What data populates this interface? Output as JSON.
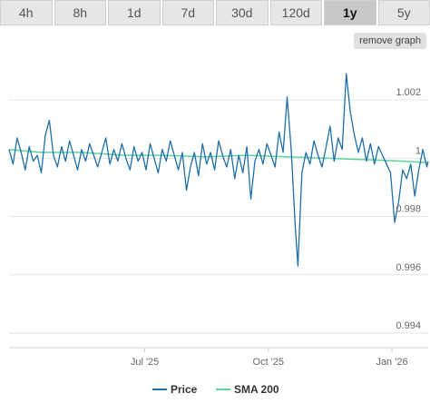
{
  "tabs": [
    {
      "label": "4h",
      "active": false
    },
    {
      "label": "8h",
      "active": false
    },
    {
      "label": "1d",
      "active": false
    },
    {
      "label": "7d",
      "active": false
    },
    {
      "label": "30d",
      "active": false
    },
    {
      "label": "120d",
      "active": false
    },
    {
      "label": "1y",
      "active": true
    },
    {
      "label": "5y",
      "active": false
    }
  ],
  "remove_graph_label": "remove graph",
  "colors": {
    "price": "#1f6fa8",
    "sma": "#5dd39e",
    "grid": "#e6e6e6"
  },
  "chart_data": {
    "type": "line",
    "title": "",
    "xlabel": "",
    "ylabel": "",
    "ylim": [
      0.9935,
      1.0035
    ],
    "xlim": [
      "2025-03-22",
      "2026-01-28"
    ],
    "x_ticks": [
      {
        "date": "2025-07-01",
        "label": "Jul '25"
      },
      {
        "date": "2025-10-01",
        "label": "Oct '25"
      },
      {
        "date": "2026-01-01",
        "label": "Jan '26"
      }
    ],
    "y_ticks": [
      {
        "value": 1.002,
        "label": "1.002"
      },
      {
        "value": 1.0,
        "label": "1"
      },
      {
        "value": 0.998,
        "label": "0.998"
      },
      {
        "value": 0.996,
        "label": "0.996"
      },
      {
        "value": 0.994,
        "label": "0.994"
      }
    ],
    "legend": {
      "position": "bottom",
      "items": [
        "Price",
        "SMA 200"
      ]
    },
    "series": [
      {
        "name": "Price",
        "points": [
          [
            "2025-03-22",
            1.0003
          ],
          [
            "2025-03-25",
            0.9998
          ],
          [
            "2025-03-28",
            1.0007
          ],
          [
            "2025-03-31",
            1.0002
          ],
          [
            "2025-04-03",
            0.9996
          ],
          [
            "2025-04-06",
            1.0004
          ],
          [
            "2025-04-09",
            0.9999
          ],
          [
            "2025-04-12",
            1.0001
          ],
          [
            "2025-04-15",
            0.9995
          ],
          [
            "2025-04-18",
            1.0008
          ],
          [
            "2025-04-21",
            1.0013
          ],
          [
            "2025-04-24",
            1.0001
          ],
          [
            "2025-04-27",
            0.9997
          ],
          [
            "2025-04-30",
            1.0004
          ],
          [
            "2025-05-03",
            0.9999
          ],
          [
            "2025-05-06",
            1.0006
          ],
          [
            "2025-05-09",
            1.0001
          ],
          [
            "2025-05-12",
            0.9996
          ],
          [
            "2025-05-15",
            1.0003
          ],
          [
            "2025-05-18",
            0.9999
          ],
          [
            "2025-05-21",
            1.0005
          ],
          [
            "2025-05-24",
            1.0001
          ],
          [
            "2025-05-27",
            0.9997
          ],
          [
            "2025-05-30",
            1.0002
          ],
          [
            "2025-06-02",
            1.0007
          ],
          [
            "2025-06-05",
            0.9998
          ],
          [
            "2025-06-08",
            1.0003
          ],
          [
            "2025-06-11",
            0.9999
          ],
          [
            "2025-06-14",
            1.0005
          ],
          [
            "2025-06-17",
            1.0
          ],
          [
            "2025-06-20",
            0.9996
          ],
          [
            "2025-06-23",
            1.0004
          ],
          [
            "2025-06-26",
            0.9999
          ],
          [
            "2025-06-29",
            1.0002
          ],
          [
            "2025-07-02",
            0.9996
          ],
          [
            "2025-07-05",
            1.0005
          ],
          [
            "2025-07-08",
            1.0
          ],
          [
            "2025-07-11",
            0.9995
          ],
          [
            "2025-07-14",
            1.0003
          ],
          [
            "2025-07-17",
            0.9999
          ],
          [
            "2025-07-20",
            1.0006
          ],
          [
            "2025-07-23",
            1.0001
          ],
          [
            "2025-07-26",
            0.9996
          ],
          [
            "2025-07-29",
            1.0002
          ],
          [
            "2025-08-01",
            0.9989
          ],
          [
            "2025-08-04",
            0.9997
          ],
          [
            "2025-08-07",
            1.0002
          ],
          [
            "2025-08-10",
            0.9994
          ],
          [
            "2025-08-13",
            1.0005
          ],
          [
            "2025-08-16",
            0.9998
          ],
          [
            "2025-08-19",
            1.0002
          ],
          [
            "2025-08-22",
            0.9996
          ],
          [
            "2025-08-25",
            1.0006
          ],
          [
            "2025-08-28",
            1.0001
          ],
          [
            "2025-08-31",
            0.9997
          ],
          [
            "2025-09-03",
            1.0003
          ],
          [
            "2025-09-06",
            0.9993
          ],
          [
            "2025-09-09",
            1.0001
          ],
          [
            "2025-09-12",
            0.9995
          ],
          [
            "2025-09-15",
            1.0004
          ],
          [
            "2025-09-18",
            0.9986
          ],
          [
            "2025-09-21",
            0.9999
          ],
          [
            "2025-09-24",
            1.0003
          ],
          [
            "2025-09-27",
            0.9998
          ],
          [
            "2025-09-30",
            1.0005
          ],
          [
            "2025-10-03",
            1.0001
          ],
          [
            "2025-10-06",
            0.9997
          ],
          [
            "2025-10-09",
            1.0009
          ],
          [
            "2025-10-12",
            1.0002
          ],
          [
            "2025-10-15",
            1.0021
          ],
          [
            "2025-10-18",
            1.0003
          ],
          [
            "2025-10-21",
            0.9977
          ],
          [
            "2025-10-23",
            0.9963
          ],
          [
            "2025-10-26",
            0.9995
          ],
          [
            "2025-10-29",
            1.0002
          ],
          [
            "2025-11-01",
            0.9998
          ],
          [
            "2025-11-04",
            1.0006
          ],
          [
            "2025-11-07",
            1.0001
          ],
          [
            "2025-11-10",
            0.9997
          ],
          [
            "2025-11-13",
            1.0004
          ],
          [
            "2025-11-16",
            1.0011
          ],
          [
            "2025-11-19",
            0.9999
          ],
          [
            "2025-11-22",
            1.0007
          ],
          [
            "2025-11-25",
            1.0003
          ],
          [
            "2025-11-28",
            1.0029
          ],
          [
            "2025-12-01",
            1.0016
          ],
          [
            "2025-12-04",
            1.0008
          ],
          [
            "2025-12-07",
            1.0002
          ],
          [
            "2025-12-10",
            1.0007
          ],
          [
            "2025-12-13",
            0.9999
          ],
          [
            "2025-12-16",
            1.0005
          ],
          [
            "2025-12-19",
            0.9998
          ],
          [
            "2025-12-22",
            1.0004
          ],
          [
            "2025-12-25",
            1.0001
          ],
          [
            "2025-12-28",
            0.9998
          ],
          [
            "2025-12-31",
            0.9995
          ],
          [
            "2026-01-03",
            0.9978
          ],
          [
            "2026-01-06",
            0.9985
          ],
          [
            "2026-01-09",
            0.9996
          ],
          [
            "2026-01-12",
            0.9993
          ],
          [
            "2026-01-15",
            0.9998
          ],
          [
            "2026-01-18",
            0.9987
          ],
          [
            "2026-01-21",
            0.9996
          ],
          [
            "2026-01-24",
            1.0003
          ],
          [
            "2026-01-27",
            0.9997
          ],
          [
            "2026-01-28",
            0.9999
          ]
        ]
      },
      {
        "name": "SMA 200",
        "points": [
          [
            "2025-03-22",
            1.0003
          ],
          [
            "2025-04-15",
            1.0002
          ],
          [
            "2025-05-15",
            1.0002
          ],
          [
            "2025-06-15",
            1.0001
          ],
          [
            "2025-07-15",
            1.0001
          ],
          [
            "2025-08-15",
            1.00005
          ],
          [
            "2025-09-15",
            1.0001
          ],
          [
            "2025-10-15",
            1.00005
          ],
          [
            "2025-11-15",
            1.0
          ],
          [
            "2025-12-15",
            0.99995
          ],
          [
            "2026-01-10",
            0.9999
          ],
          [
            "2026-01-28",
            0.99985
          ]
        ]
      }
    ]
  }
}
